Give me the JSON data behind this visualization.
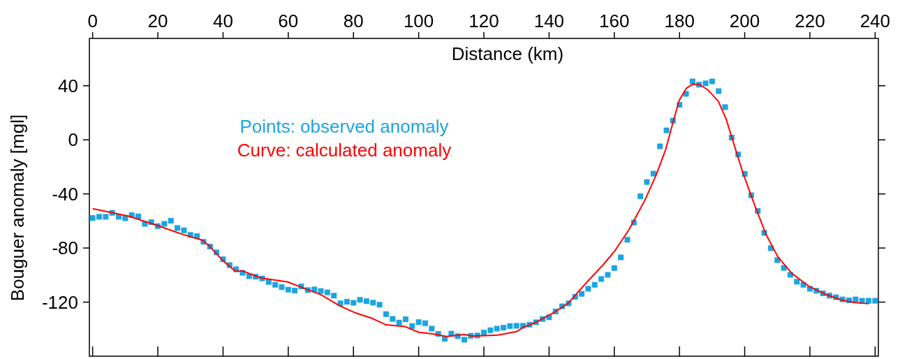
{
  "chart_data": {
    "type": "scatter",
    "xlabel": "Distance (km)",
    "ylabel": "Bouguer anomaly [mgl]",
    "xlim": [
      -1,
      241
    ],
    "xticks": [
      0,
      20,
      40,
      60,
      80,
      100,
      120,
      140,
      160,
      180,
      200,
      220,
      240
    ],
    "ylim": [
      -160,
      75
    ],
    "yticks": [
      -120,
      -80,
      -40,
      0,
      40
    ],
    "grid": false,
    "legend": "top left",
    "series": [
      {
        "name": "Points: observed anomaly",
        "marker": "square",
        "color": "#1ba5e2",
        "x": [
          0,
          2,
          4,
          6,
          8,
          10,
          12,
          14,
          16,
          18,
          20,
          22,
          24,
          26,
          28,
          30,
          32,
          34,
          36,
          38,
          40,
          42,
          44,
          46,
          48,
          50,
          52,
          54,
          56,
          58,
          60,
          62,
          64,
          66,
          68,
          70,
          72,
          74,
          76,
          78,
          80,
          82,
          84,
          86,
          88,
          90,
          92,
          94,
          96,
          98,
          100,
          102,
          104,
          106,
          108,
          110,
          112,
          114,
          116,
          118,
          120,
          122,
          124,
          126,
          128,
          130,
          132,
          134,
          136,
          138,
          140,
          142,
          144,
          146,
          148,
          150,
          152,
          154,
          156,
          158,
          160,
          162,
          164,
          166,
          168,
          170,
          172,
          174,
          176,
          178,
          180,
          182,
          184,
          186,
          188,
          190,
          192,
          194,
          196,
          198,
          200,
          202,
          204,
          206,
          208,
          210,
          212,
          214,
          216,
          218,
          220,
          222,
          224,
          226,
          228,
          230,
          232,
          234,
          236,
          238,
          240
        ],
        "values": [
          -57.8,
          -56.9,
          -56.9,
          -54.0,
          -56.9,
          -58.0,
          -55.7,
          -56.6,
          -62.1,
          -60.9,
          -63.8,
          -62.1,
          -59.8,
          -65.2,
          -66.9,
          -70.3,
          -71.2,
          -75.4,
          -78.9,
          -83.2,
          -88.3,
          -92.6,
          -95.7,
          -98.3,
          -100.8,
          -101.2,
          -102.5,
          -105.1,
          -107.2,
          -108.9,
          -110.8,
          -111.5,
          -108.4,
          -111.1,
          -110.6,
          -111.8,
          -112.8,
          -115.2,
          -120.9,
          -119.7,
          -120.5,
          -118.3,
          -119.3,
          -120.4,
          -121.9,
          -128.9,
          -132.4,
          -135.1,
          -132.7,
          -137.7,
          -134.8,
          -135.6,
          -139.6,
          -143.5,
          -147.1,
          -143.3,
          -145.2,
          -147.8,
          -144.9,
          -144.7,
          -142.5,
          -140.8,
          -139.6,
          -138.9,
          -137.7,
          -137.5,
          -137.5,
          -136.7,
          -134.9,
          -132.5,
          -131.2,
          -126.9,
          -123.1,
          -120.9,
          -116.1,
          -113.9,
          -110.1,
          -107.2,
          -102.9,
          -99.8,
          -94.8,
          -86.9,
          -73.9,
          -61.2,
          -41.7,
          -31.2,
          -25.0,
          -4.8,
          7.0,
          14.2,
          25.9,
          34.0,
          43.2,
          40.8,
          41.8,
          43.2,
          36.0,
          24.2,
          1.7,
          -10.8,
          -25.2,
          -41.0,
          -52.6,
          -68.8,
          -80.1,
          -89.0,
          -94.7,
          -99.8,
          -104.9,
          -107.2,
          -110.1,
          -111.6,
          -113.5,
          -115.2,
          -116.4,
          -118.0,
          -118.7,
          -118.0,
          -119.0,
          -119.0,
          -119.0
        ]
      },
      {
        "name": "Curve: calculated anomaly",
        "type": "line",
        "line_style": "solid",
        "color": "#ff0000",
        "x": [
          0,
          11.3,
          19.9,
          27.0,
          33.5,
          35.6,
          39.9,
          43.8,
          46.0,
          51.4,
          59.9,
          65.7,
          70.0,
          75.7,
          80.3,
          85.7,
          90.0,
          95.7,
          100.0,
          104.3,
          108.6,
          114.0,
          116.5,
          124.3,
          130.1,
          132.2,
          135.8,
          141.5,
          145.8,
          151.5,
          156.5,
          160.1,
          164.4,
          169.4,
          172.9,
          175.8,
          177.9,
          179.9,
          182.1,
          184.2,
          186.2,
          188.7,
          191.9,
          194.3,
          196.5,
          199.4,
          203.0,
          206.6,
          210.2,
          214.4,
          219.5,
          224.5,
          229.5,
          233.8,
          238.1
        ],
        "values": [
          -50.9,
          -56.6,
          -63.4,
          -69.4,
          -74.1,
          -78.0,
          -89.2,
          -97.3,
          -96.9,
          -102.0,
          -105.1,
          -110.6,
          -114.5,
          -122.6,
          -127.7,
          -132.0,
          -136.8,
          -138.0,
          -142.3,
          -143.5,
          -145.4,
          -144.0,
          -145.2,
          -144.4,
          -141.8,
          -138.5,
          -135.1,
          -127.7,
          -120.9,
          -105.5,
          -92.6,
          -82.3,
          -66.9,
          -44.6,
          -25.7,
          -6.9,
          12.0,
          29.2,
          38.1,
          41.2,
          40.8,
          36.9,
          28.6,
          15.4,
          -1.7,
          -24.0,
          -48.0,
          -70.3,
          -86.6,
          -98.6,
          -108.0,
          -114.0,
          -118.3,
          -120.4,
          -121.2
        ]
      }
    ]
  }
}
